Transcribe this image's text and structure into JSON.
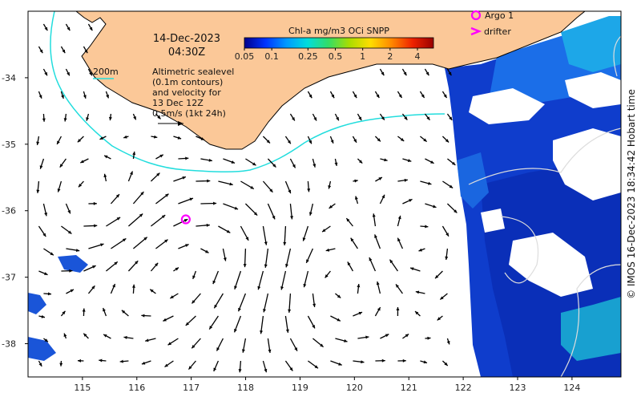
{
  "map": {
    "date_line": "14-Dec-2023",
    "time_line": "04:30Z",
    "isobath_label": "200m",
    "altimetry_lines": [
      "Altimetric sealevel",
      "(0.1m contours)",
      "and velocity for",
      "13 Dec 12Z"
    ],
    "velocity_scale_label": "0.5m/s (1kt 24h)",
    "colorbar": {
      "title": "Chl-a mg/m3 OCi SNPP",
      "tick_labels": [
        "0.05",
        "0.1",
        "0.25",
        "0.5",
        "1",
        "2",
        "4"
      ],
      "tick_values": [
        0.05,
        0.1,
        0.25,
        0.5,
        1,
        2,
        4
      ],
      "range": [
        0.05,
        6
      ],
      "scale": "log",
      "colors": [
        "#00008b",
        "#0033ff",
        "#0099ff",
        "#00dddd",
        "#33dd66",
        "#aadd00",
        "#ffdd00",
        "#ff8800",
        "#ee2200",
        "#990000"
      ]
    },
    "legend": {
      "argo_label": "Argo 1",
      "argo_color": "#ff00ff",
      "drifter_label": "drifter",
      "drifter_color": "#ff00ff"
    },
    "credit": "© IMOS 16-Dec-2023 18:34:42 Hobart time",
    "x_ticks": [
      115,
      116,
      117,
      118,
      119,
      120,
      121,
      122,
      123,
      124
    ],
    "y_ticks": [
      -34,
      -35,
      -36,
      -37,
      -38
    ],
    "x_range": [
      114.0,
      124.9
    ],
    "y_range": [
      -38.5,
      -33.0
    ],
    "argo_float": {
      "lon": 116.9,
      "lat": -36.13
    },
    "colors": {
      "land": "#fbc898",
      "coast": "#000000",
      "isobath": "#22dddd",
      "ocean_blank": "#ffffff",
      "vectors": "#000000",
      "sst_contours": "#dddddd"
    }
  }
}
